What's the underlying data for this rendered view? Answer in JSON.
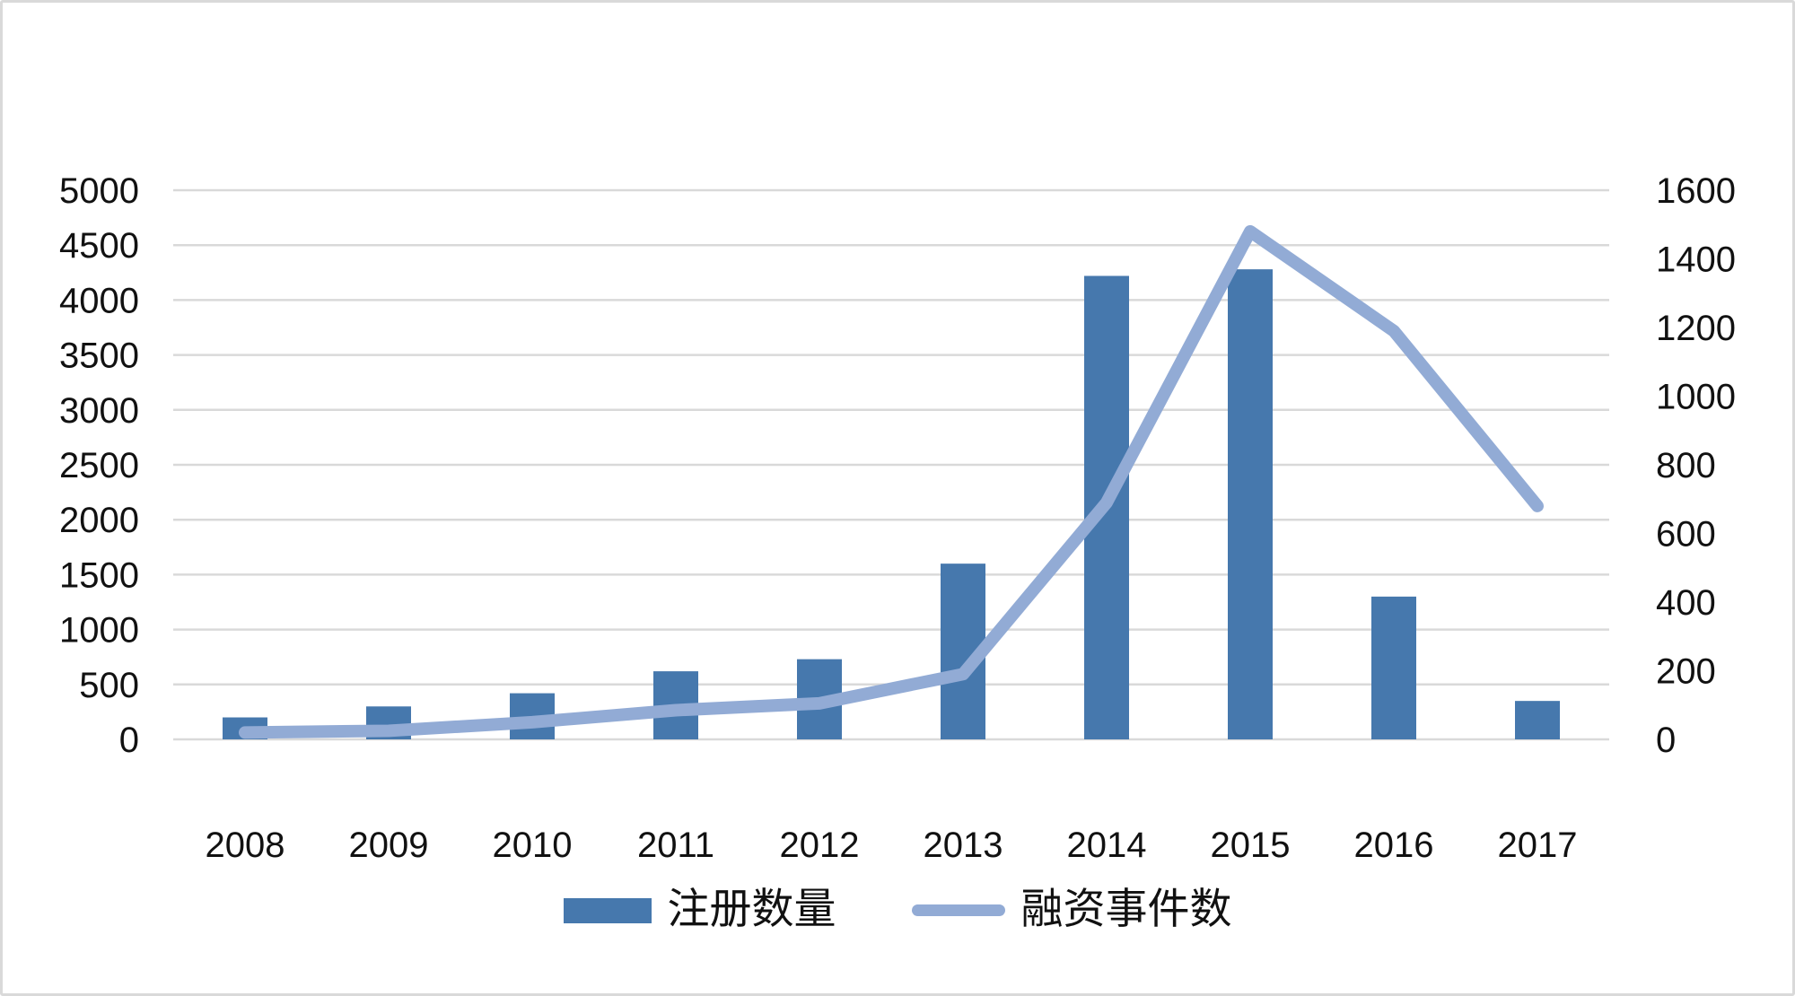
{
  "colors": {
    "bar_series": "#4678ad",
    "line_series": "#92abd5",
    "gridline": "#d9d9d9",
    "canvas_border": "#d9d9d9",
    "text": "#111111",
    "background": "#ffffff"
  },
  "chart_data": {
    "type": "bar",
    "subtype": "combo-bar-line-dual-axis",
    "title": "",
    "categories": [
      "2008",
      "2009",
      "2010",
      "2011",
      "2012",
      "2013",
      "2014",
      "2015",
      "2016",
      "2017"
    ],
    "series": [
      {
        "name": "注册数量",
        "type": "bar",
        "axis": "left",
        "color": "#4678ad",
        "values": [
          200,
          300,
          420,
          620,
          730,
          1600,
          4220,
          4280,
          1300,
          350
        ]
      },
      {
        "name": "融资事件数",
        "type": "line",
        "axis": "right",
        "color": "#92abd5",
        "values": [
          20,
          25,
          50,
          85,
          105,
          190,
          690,
          1480,
          1190,
          680
        ]
      }
    ],
    "left_axis": {
      "min": 0,
      "max": 5000,
      "step": 500,
      "tick_labels": [
        "0",
        "500",
        "1000",
        "1500",
        "2000",
        "2500",
        "3000",
        "3500",
        "4000",
        "4500",
        "5000"
      ]
    },
    "right_axis": {
      "min": 0,
      "max": 1600,
      "step": 200,
      "tick_labels": [
        "0",
        "200",
        "400",
        "600",
        "800",
        "1000",
        "1200",
        "1400",
        "1600"
      ]
    },
    "xlabel": "",
    "ylabel": "",
    "grid": "horizontal",
    "legend_position": "bottom"
  },
  "legend": {
    "items": [
      {
        "label": "注册数量",
        "marker": "bar-swatch"
      },
      {
        "label": "融资事件数",
        "marker": "line-swatch"
      }
    ]
  }
}
